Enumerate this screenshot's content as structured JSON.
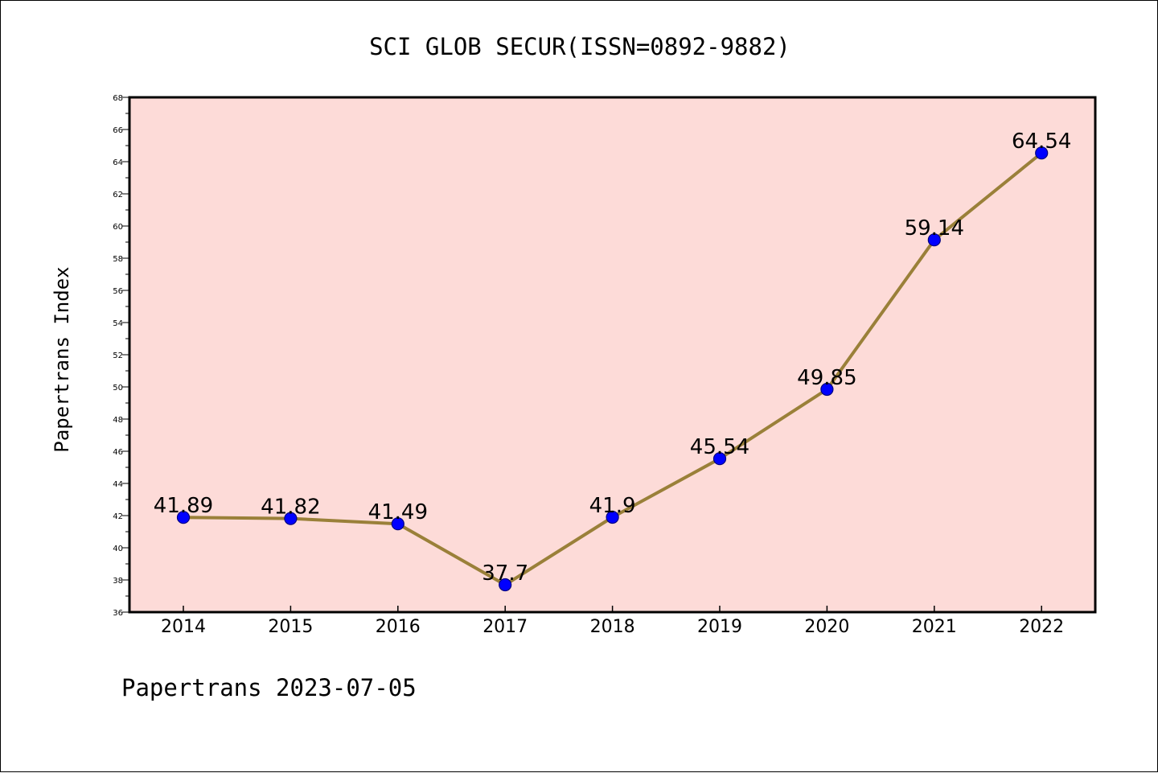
{
  "chart_data": {
    "type": "line",
    "title": "SCI GLOB SECUR(ISSN=0892-9882)",
    "xlabel": "",
    "ylabel": "Papertrans Index",
    "categories": [
      "2014",
      "2015",
      "2016",
      "2017",
      "2018",
      "2019",
      "2020",
      "2021",
      "2022"
    ],
    "series": [
      {
        "values": [
          41.89,
          41.82,
          41.49,
          37.7,
          41.9,
          45.54,
          49.85,
          59.14,
          64.54
        ],
        "labels": [
          "41.89",
          "41.82",
          "41.49",
          "37.7",
          "41.9",
          "45.54",
          "49.85",
          "59.14",
          "64.54"
        ]
      }
    ],
    "ylim": [
      36,
      68
    ],
    "yticks": [
      "36",
      "38",
      "40",
      "42",
      "44",
      "46",
      "48",
      "50",
      "52",
      "54",
      "56",
      "58",
      "60",
      "62",
      "64",
      "66",
      "68"
    ],
    "grid": false,
    "legend": "none",
    "footer": "Papertrans 2023-07-05"
  },
  "colors": {
    "plot_background": "#fddbd8",
    "line": "#9a8039",
    "marker_fill": "#0000ff",
    "marker_edge": "#000080",
    "axes": "#000000"
  }
}
